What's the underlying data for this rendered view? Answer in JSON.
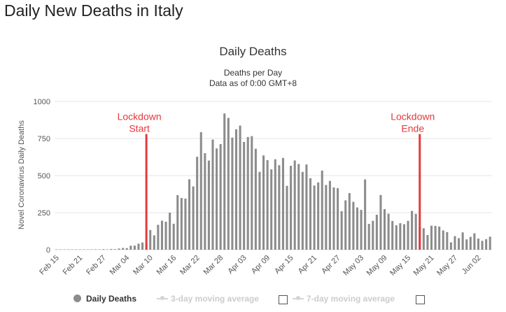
{
  "page": {
    "title": "Daily New Deaths in Italy"
  },
  "chart_data": {
    "type": "bar",
    "title": "Daily Deaths",
    "subtitle_line1": "Deaths per Day",
    "subtitle_line2": "Data as of 0:00 GMT+8",
    "ylabel": "Novel Coronavirus Daily Deaths",
    "xlabel": "",
    "ylim": [
      0,
      1000
    ],
    "yticks": [
      0,
      250,
      500,
      750,
      1000
    ],
    "grid": true,
    "start_date": "Feb 15",
    "xtick_labels": [
      "Feb 15",
      "Feb 21",
      "Feb 27",
      "Mar 04",
      "Mar 10",
      "Mar 16",
      "Mar 22",
      "Mar 28",
      "Apr 03",
      "Apr 09",
      "Apr 15",
      "Apr 21",
      "Apr 27",
      "May 03",
      "May 09",
      "May 15",
      "May 21",
      "May 27",
      "Jun 02"
    ],
    "series": [
      {
        "name": "Daily Deaths",
        "color": "#8c8c8c",
        "values": [
          0,
          0,
          0,
          0,
          0,
          0,
          0,
          1,
          1,
          0,
          3,
          1,
          4,
          2,
          5,
          4,
          8,
          12,
          11,
          27,
          28,
          41,
          49,
          36,
          133,
          97,
          168,
          196,
          189,
          250,
          175,
          368,
          349,
          345,
          475,
          427,
          627,
          793,
          651,
          601,
          743,
          683,
          712,
          919,
          889,
          756,
          812,
          837,
          727,
          760,
          766,
          681,
          525,
          636,
          604,
          542,
          610,
          570,
          619,
          431,
          566,
          602,
          578,
          525,
          575,
          482,
          433,
          454,
          534,
          437,
          464,
          420,
          415,
          260,
          333,
          382,
          323,
          285,
          269,
          474,
          174,
          195,
          236,
          369,
          274,
          243,
          194,
          165,
          179,
          172,
          195,
          262,
          242,
          153,
          145,
          99,
          162,
          161,
          156,
          130,
          119,
          50,
          92,
          78,
          117,
          70,
          87,
          111,
          75,
          60,
          71,
          88
        ]
      },
      {
        "name": "3-day moving average",
        "color": "#cccccc"
      },
      {
        "name": "7-day moving average",
        "color": "#cccccc"
      }
    ],
    "annotations": [
      {
        "label_line1": "Lockdown",
        "label_line2": "Start",
        "date": "Mar 09",
        "value": 780,
        "color": "#e5383b"
      },
      {
        "label_line1": "Lockdown",
        "label_line2": "Ende",
        "date": "May 18",
        "value": 780,
        "color": "#e5383b"
      }
    ],
    "legend": "bottom"
  }
}
